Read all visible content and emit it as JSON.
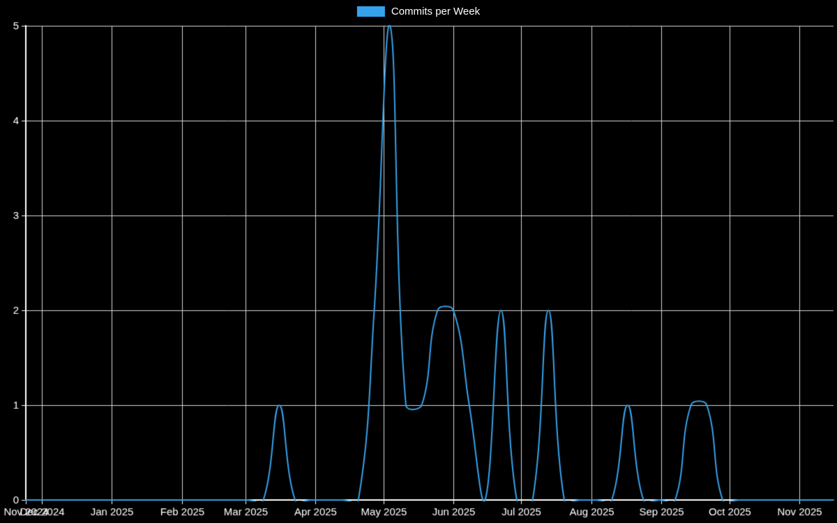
{
  "page": {
    "background": "#000000"
  },
  "legend": {
    "label": "Commits per Week"
  },
  "chart_data": {
    "type": "line",
    "title": "Commits per Week",
    "series": [
      {
        "name": "Commits per Week",
        "x": [
          "2024-11-24",
          "2024-12-01",
          "2024-12-08",
          "2024-12-15",
          "2024-12-22",
          "2024-12-29",
          "2025-01-05",
          "2025-01-12",
          "2025-01-19",
          "2025-01-26",
          "2025-02-02",
          "2025-02-09",
          "2025-02-16",
          "2025-02-23",
          "2025-03-02",
          "2025-03-09",
          "2025-03-16",
          "2025-03-23",
          "2025-03-30",
          "2025-04-06",
          "2025-04-13",
          "2025-04-20",
          "2025-04-27",
          "2025-05-04",
          "2025-05-11",
          "2025-05-18",
          "2025-05-25",
          "2025-06-01",
          "2025-06-08",
          "2025-06-15",
          "2025-06-22",
          "2025-06-29",
          "2025-07-06",
          "2025-07-13",
          "2025-07-20",
          "2025-07-27",
          "2025-08-03",
          "2025-08-10",
          "2025-08-17",
          "2025-08-24",
          "2025-08-31",
          "2025-09-07",
          "2025-09-14",
          "2025-09-21",
          "2025-09-28",
          "2025-10-05",
          "2025-10-12",
          "2025-10-19",
          "2025-10-26",
          "2025-11-02",
          "2025-11-09",
          "2025-11-16"
        ],
        "values": [
          0,
          0,
          0,
          0,
          0,
          0,
          0,
          0,
          0,
          0,
          0,
          0,
          0,
          0,
          0,
          0,
          1,
          0,
          0,
          0,
          0,
          0,
          2,
          5,
          1,
          1,
          2,
          2,
          1,
          0,
          2,
          0,
          0,
          2,
          0,
          0,
          0,
          0,
          1,
          0,
          0,
          0,
          1,
          1,
          0,
          0,
          0,
          0,
          0,
          0,
          0,
          0
        ]
      }
    ],
    "x_ticks": [
      {
        "label": "Nov 2024",
        "date": "2024-11-24"
      },
      {
        "label": "Dec 2024",
        "date": "2024-12-01"
      },
      {
        "label": "Jan 2025",
        "date": "2025-01-01"
      },
      {
        "label": "Feb 2025",
        "date": "2025-02-01"
      },
      {
        "label": "Mar 2025",
        "date": "2025-03-01"
      },
      {
        "label": "Apr 2025",
        "date": "2025-04-01"
      },
      {
        "label": "May 2025",
        "date": "2025-05-01"
      },
      {
        "label": "Jun 2025",
        "date": "2025-06-01"
      },
      {
        "label": "Jul 2025",
        "date": "2025-07-01"
      },
      {
        "label": "Aug 2025",
        "date": "2025-08-01"
      },
      {
        "label": "Sep 2025",
        "date": "2025-09-01"
      },
      {
        "label": "Oct 2025",
        "date": "2025-10-01"
      },
      {
        "label": "Nov 2025",
        "date": "2025-11-01"
      }
    ],
    "y_ticks": [
      0,
      1,
      2,
      3,
      4,
      5
    ],
    "ylim": [
      0,
      5
    ],
    "xlabel": "",
    "ylabel": "",
    "grid": true,
    "legend_position": "top",
    "colors": {
      "line": "#36a2eb",
      "legend_fill": "#36a2eb",
      "grid": "#d9d9d9",
      "axis": "#ffffff",
      "text": "#ffffff",
      "background": "#000000"
    }
  }
}
